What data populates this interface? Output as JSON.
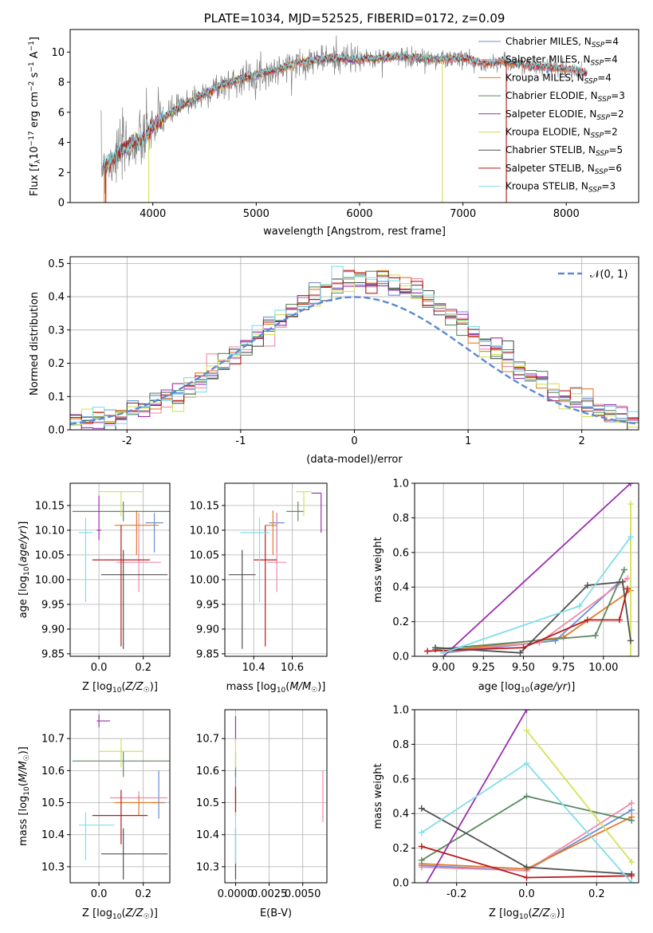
{
  "figure_title": "PLATE=1034, MJD=52525, FIBERID=0172, z=0.09",
  "colors": {
    "chabrier_miles": "#6b8fd6",
    "salpeter_miles": "#f08aa8",
    "kroupa_miles": "#e07b2a",
    "chabrier_elodie": "#5d8a62",
    "salpeter_elodie": "#9b2fae",
    "kroupa_elodie": "#d4e157",
    "chabrier_stelib": "#505050",
    "salpeter_stelib": "#b71c1c",
    "kroupa_stelib": "#80deea",
    "normal_curve": "#5b8ad6"
  },
  "chart_data": [
    {
      "id": "spectrum",
      "type": "line",
      "title": "PLATE=1034, MJD=52525, FIBERID=0172, z=0.09",
      "xlabel": "wavelength [Angstrom, rest frame]",
      "ylabel_parts": [
        "Flux [f",
        "λ",
        "10",
        "−17",
        " erg cm",
        "−2",
        " s",
        "−1",
        " A",
        "−1",
        "]"
      ],
      "xlim": [
        3200,
        8700
      ],
      "ylim": [
        0,
        11.5
      ],
      "xticks": [
        4000,
        5000,
        6000,
        7000,
        8000
      ],
      "yticks": [
        0,
        2,
        4,
        6,
        8,
        10
      ],
      "legend_position": "right",
      "legend": [
        {
          "label": "Chabrier MILES, N",
          "sub": "SSP",
          "tail": "=4",
          "color": "#6b8fd6"
        },
        {
          "label": "Salpeter MILES, N",
          "sub": "SSP",
          "tail": "=4",
          "color": "#f08aa8"
        },
        {
          "label": "Kroupa MILES, N",
          "sub": "SSP",
          "tail": "=4",
          "color": "#e07b2a"
        },
        {
          "label": "Chabrier ELODIE, N",
          "sub": "SSP",
          "tail": "=3",
          "color": "#5d8a62"
        },
        {
          "label": "Salpeter ELODIE, N",
          "sub": "SSP",
          "tail": "=2",
          "color": "#9b2fae"
        },
        {
          "label": "Kroupa ELODIE, N",
          "sub": "SSP",
          "tail": "=2",
          "color": "#d4e157"
        },
        {
          "label": "Chabrier STELIB, N",
          "sub": "SSP",
          "tail": "=5",
          "color": "#505050"
        },
        {
          "label": "Salpeter STELIB, N",
          "sub": "SSP",
          "tail": "=6",
          "color": "#b71c1c"
        },
        {
          "label": "Kroupa STELIB, N",
          "sub": "SSP",
          "tail": "=3",
          "color": "#80deea"
        }
      ],
      "continuum": {
        "x": [
          3500,
          3600,
          3700,
          3800,
          3900,
          4000,
          4100,
          4200,
          4300,
          4400,
          4500,
          4600,
          4800,
          5000,
          5200,
          5400,
          5600,
          5800,
          6000,
          6200,
          6400,
          6600,
          6800,
          7000,
          7200,
          7400,
          7600,
          7800,
          8000,
          8200
        ],
        "y": [
          2.4,
          2.8,
          3.5,
          3.9,
          4.1,
          5.0,
          5.6,
          6.1,
          6.5,
          6.9,
          7.2,
          7.6,
          8.1,
          8.5,
          8.8,
          9.3,
          9.5,
          9.6,
          9.5,
          9.6,
          9.7,
          9.6,
          9.5,
          9.6,
          9.2,
          9.4,
          9.1,
          9.0,
          8.9,
          8.6
        ]
      }
    },
    {
      "id": "residuals",
      "type": "step",
      "xlabel": "(data-model)/error",
      "ylabel": "Normed distribution",
      "xlim": [
        -2.5,
        2.5
      ],
      "ylim": [
        0,
        0.52
      ],
      "xticks": [
        -2,
        -1,
        0,
        1,
        2
      ],
      "yticks": [
        0.0,
        0.1,
        0.2,
        0.3,
        0.4,
        0.5
      ],
      "grid": true,
      "legend_position": "top-right",
      "normal_label": "𝒩(0, 1)"
    },
    {
      "id": "Z_vs_age",
      "type": "errorbar",
      "xlabel": "Z [log10(Z/Z☉)]",
      "ylabel": "age  [log10(age/yr)]",
      "xlim": [
        -0.13,
        0.32
      ],
      "ylim": [
        9.845,
        10.195
      ],
      "xticks": [
        0.0,
        0.2
      ],
      "yticks": [
        9.85,
        9.9,
        9.95,
        10.0,
        10.05,
        10.1,
        10.15
      ],
      "grid": true,
      "points": [
        {
          "model": "chabrier_miles",
          "x": 0.25,
          "y": 10.115,
          "xerr": [
            0.04,
            0.04
          ],
          "yerr": [
            0.06,
            0.02
          ]
        },
        {
          "model": "salpeter_miles",
          "x": 0.18,
          "y": 10.035,
          "xerr": [
            0.1,
            0.1
          ],
          "yerr": [
            0.06,
            0.1
          ]
        },
        {
          "model": "kroupa_miles",
          "x": 0.17,
          "y": 10.11,
          "xerr": [
            0.1,
            0.1
          ],
          "yerr": [
            0.06,
            0.03
          ]
        },
        {
          "model": "chabrier_elodie",
          "x": 0.11,
          "y": 10.138,
          "xerr": [
            0.23,
            0.23
          ],
          "yerr": [
            0.02,
            0.02
          ]
        },
        {
          "model": "salpeter_elodie",
          "x": 0.0,
          "y": 10.1,
          "xerr": [
            0.01,
            0.01
          ],
          "yerr": [
            0.02,
            0.07
          ]
        },
        {
          "model": "kroupa_elodie",
          "x": 0.1,
          "y": 10.178,
          "xerr": [
            0.1,
            0.1
          ],
          "yerr": [
            0.05,
            0.0
          ]
        },
        {
          "model": "chabrier_stelib",
          "x": 0.11,
          "y": 10.01,
          "xerr": [
            0.1,
            0.2
          ],
          "yerr": [
            0.15,
            0.05
          ]
        },
        {
          "model": "salpeter_stelib",
          "x": 0.1,
          "y": 10.04,
          "xerr": [
            0.13,
            0.13
          ],
          "yerr": [
            0.175,
            0.07
          ]
        },
        {
          "model": "kroupa_stelib",
          "x": -0.06,
          "y": 10.095,
          "xerr": [
            0.03,
            0.03
          ],
          "yerr": [
            0.14,
            0.03
          ]
        }
      ]
    },
    {
      "id": "mass_vs_age",
      "type": "errorbar",
      "xlabel": "mass [log10(M/M☉)]",
      "ylabel": "",
      "xlim": [
        10.25,
        10.78
      ],
      "ylim": [
        9.845,
        10.195
      ],
      "xticks": [
        10.4,
        10.6
      ],
      "yticks": [
        9.85,
        9.9,
        9.95,
        10.0,
        10.05,
        10.1,
        10.15
      ],
      "grid": true,
      "points": [
        {
          "model": "chabrier_miles",
          "x": 10.52,
          "y": 10.115,
          "xerr": [
            0.04,
            0.04
          ],
          "yerr": [
            0.06,
            0.02
          ]
        },
        {
          "model": "salpeter_miles",
          "x": 10.52,
          "y": 10.035,
          "xerr": [
            0.05,
            0.05
          ],
          "yerr": [
            0.06,
            0.1
          ]
        },
        {
          "model": "kroupa_miles",
          "x": 10.5,
          "y": 10.11,
          "xerr": [
            0.04,
            0.02
          ],
          "yerr": [
            0.06,
            0.03
          ]
        },
        {
          "model": "chabrier_elodie",
          "x": 10.63,
          "y": 10.138,
          "xerr": [
            0.06,
            0.03
          ],
          "yerr": [
            0.02,
            0.02
          ]
        },
        {
          "model": "salpeter_elodie",
          "x": 10.75,
          "y": 10.175,
          "xerr": [
            0.05,
            0.0
          ],
          "yerr": [
            0.08,
            0.0
          ]
        },
        {
          "model": "kroupa_elodie",
          "x": 10.66,
          "y": 10.178,
          "xerr": [
            0.04,
            0.04
          ],
          "yerr": [
            0.05,
            0.0
          ]
        },
        {
          "model": "chabrier_stelib",
          "x": 10.34,
          "y": 10.01,
          "xerr": [
            0.07,
            0.07
          ],
          "yerr": [
            0.15,
            0.05
          ]
        },
        {
          "model": "salpeter_stelib",
          "x": 10.46,
          "y": 10.04,
          "xerr": [
            0.06,
            0.06
          ],
          "yerr": [
            0.175,
            0.07
          ]
        },
        {
          "model": "kroupa_stelib",
          "x": 10.43,
          "y": 10.095,
          "xerr": [
            0.1,
            0.05
          ],
          "yerr": [
            0.14,
            0.03
          ]
        }
      ]
    },
    {
      "id": "age_vs_weight",
      "type": "line",
      "xlabel": "age  [log10(age/yr)]",
      "ylabel": "mass weight",
      "xlim": [
        8.82,
        10.22
      ],
      "ylim": [
        0,
        1
      ],
      "xticks": [
        9.0,
        9.25,
        9.5,
        9.75,
        10.0
      ],
      "yticks": [
        0.0,
        0.2,
        0.4,
        0.6,
        0.8,
        1.0
      ],
      "grid": true,
      "series": [
        {
          "model": "chabrier_miles",
          "x": [
            9.0,
            9.7,
            10.1
          ],
          "y": [
            0.02,
            0.09,
            0.43
          ]
        },
        {
          "model": "salpeter_miles",
          "x": [
            9.0,
            9.6,
            10.15
          ],
          "y": [
            0.03,
            0.08,
            0.45
          ]
        },
        {
          "model": "kroupa_miles",
          "x": [
            9.0,
            9.75,
            10.17
          ],
          "y": [
            0.03,
            0.11,
            0.38
          ]
        },
        {
          "model": "chabrier_elodie",
          "x": [
            8.95,
            9.95,
            10.13
          ],
          "y": [
            0.04,
            0.12,
            0.5
          ]
        },
        {
          "model": "salpeter_elodie",
          "x": [
            9.0,
            10.17
          ],
          "y": [
            0.0,
            1.0
          ]
        },
        {
          "model": "kroupa_elodie",
          "x": [
            10.17,
            10.17
          ],
          "y": [
            0.0,
            0.88
          ]
        },
        {
          "model": "chabrier_stelib",
          "x": [
            8.95,
            9.48,
            9.9,
            10.12,
            10.17
          ],
          "y": [
            0.05,
            0.02,
            0.41,
            0.43,
            0.09
          ]
        },
        {
          "model": "salpeter_stelib",
          "x": [
            8.9,
            9.5,
            9.9,
            10.1,
            10.15
          ],
          "y": [
            0.03,
            0.05,
            0.21,
            0.21,
            0.39
          ]
        },
        {
          "model": "kroupa_stelib",
          "x": [
            9.0,
            9.85,
            10.17
          ],
          "y": [
            0.02,
            0.29,
            0.69
          ]
        }
      ]
    },
    {
      "id": "Z_vs_mass",
      "type": "errorbar",
      "xlabel": "Z [log10(Z/Z☉)]",
      "ylabel": "mass [log10(M/M☉)]",
      "xlim": [
        -0.13,
        0.32
      ],
      "ylim": [
        10.25,
        10.79
      ],
      "xticks": [
        0.0,
        0.2
      ],
      "yticks": [
        10.3,
        10.4,
        10.5,
        10.6,
        10.7
      ],
      "grid": true,
      "points": [
        {
          "model": "chabrier_miles",
          "x": 0.27,
          "y": 10.5,
          "xerr": [
            0.03,
            0.03
          ],
          "yerr": [
            0.05,
            0.1
          ]
        },
        {
          "model": "salpeter_miles",
          "x": 0.18,
          "y": 10.515,
          "xerr": [
            0.13,
            0.13
          ],
          "yerr": [
            0.03,
            0.02
          ]
        },
        {
          "model": "kroupa_miles",
          "x": 0.18,
          "y": 10.5,
          "xerr": [
            0.11,
            0.11
          ],
          "yerr": [
            0.04,
            0.02
          ]
        },
        {
          "model": "chabrier_elodie",
          "x": 0.11,
          "y": 10.63,
          "xerr": [
            0.23,
            0.23
          ],
          "yerr": [
            0.05,
            0.03
          ]
        },
        {
          "model": "salpeter_elodie",
          "x": 0.0,
          "y": 10.755,
          "xerr": [
            0.01,
            0.05
          ],
          "yerr": [
            0.02,
            0.02
          ]
        },
        {
          "model": "kroupa_elodie",
          "x": 0.1,
          "y": 10.66,
          "xerr": [
            0.1,
            0.1
          ],
          "yerr": [
            0.05,
            0.04
          ]
        },
        {
          "model": "chabrier_stelib",
          "x": 0.11,
          "y": 10.34,
          "xerr": [
            0.1,
            0.2
          ],
          "yerr": [
            0.08,
            0.08
          ]
        },
        {
          "model": "salpeter_stelib",
          "x": 0.1,
          "y": 10.46,
          "xerr": [
            0.13,
            0.12
          ],
          "yerr": [
            0.09,
            0.08
          ]
        },
        {
          "model": "kroupa_stelib",
          "x": -0.06,
          "y": 10.43,
          "xerr": [
            0.03,
            0.13
          ],
          "yerr": [
            0.11,
            0.04
          ]
        }
      ]
    },
    {
      "id": "ebv_vs_mass",
      "type": "errorbar",
      "xlabel": "E(B-V)",
      "ylabel": "",
      "xlim": [
        -0.0008,
        0.0068
      ],
      "ylim": [
        10.25,
        10.79
      ],
      "xticks": [
        0.0,
        0.0025,
        0.005
      ],
      "xtick_labels": [
        "0.0000",
        "0.0025",
        "0.0050"
      ],
      "yticks": [
        10.3,
        10.4,
        10.5,
        10.6,
        10.7
      ],
      "grid": true,
      "points": [
        {
          "model": "chabrier_miles",
          "x": 0.0,
          "y": 10.55,
          "xerr": [
            0,
            0
          ],
          "yerr": [
            0.05,
            0.05
          ]
        },
        {
          "model": "salpeter_miles",
          "x": 0.0065,
          "y": 10.52,
          "xerr": [
            0,
            0
          ],
          "yerr": [
            0.08,
            0.08
          ]
        },
        {
          "model": "kroupa_miles",
          "x": 0.0,
          "y": 10.5,
          "xerr": [
            0,
            0
          ],
          "yerr": [
            0.04,
            0.04
          ]
        },
        {
          "model": "chabrier_elodie",
          "x": 0.0,
          "y": 10.63,
          "xerr": [
            0,
            0
          ],
          "yerr": [
            0.05,
            0.03
          ]
        },
        {
          "model": "salpeter_elodie",
          "x": 0.0,
          "y": 10.72,
          "xerr": [
            0,
            0
          ],
          "yerr": [
            0.03,
            0.05
          ]
        },
        {
          "model": "kroupa_elodie",
          "x": 0.0,
          "y": 10.66,
          "xerr": [
            0,
            0
          ],
          "yerr": [
            0.05,
            0.04
          ]
        },
        {
          "model": "chabrier_stelib",
          "x": 0.0,
          "y": 10.34,
          "xerr": [
            0,
            0
          ],
          "yerr": [
            0.08,
            0.08
          ]
        },
        {
          "model": "salpeter_stelib",
          "x": 0.0,
          "y": 10.5,
          "xerr": [
            0,
            0
          ],
          "yerr": [
            0.03,
            0.05
          ]
        },
        {
          "model": "kroupa_stelib",
          "x": 0.0,
          "y": 10.42,
          "xerr": [
            0,
            0
          ],
          "yerr": [
            0.11,
            0.05
          ]
        }
      ]
    },
    {
      "id": "Z_vs_weight",
      "type": "line",
      "xlabel": "Z [log10(Z/Z☉)]",
      "ylabel": "mass weight",
      "xlim": [
        -0.32,
        0.32
      ],
      "ylim": [
        0,
        1
      ],
      "xticks": [
        -0.2,
        0.0,
        0.2
      ],
      "yticks": [
        0.0,
        0.2,
        0.4,
        0.6,
        0.8,
        1.0
      ],
      "grid": true,
      "series": [
        {
          "model": "chabrier_miles",
          "x": [
            -0.3,
            0.0,
            0.3
          ],
          "y": [
            0.1,
            0.07,
            0.42
          ]
        },
        {
          "model": "salpeter_miles",
          "x": [
            -0.3,
            0.0,
            0.3
          ],
          "y": [
            0.09,
            0.07,
            0.46
          ]
        },
        {
          "model": "kroupa_miles",
          "x": [
            -0.3,
            0.0,
            0.3
          ],
          "y": [
            0.11,
            0.08,
            0.38
          ]
        },
        {
          "model": "chabrier_elodie",
          "x": [
            -0.3,
            0.0,
            0.3
          ],
          "y": [
            0.13,
            0.5,
            0.36
          ]
        },
        {
          "model": "salpeter_elodie",
          "x": [
            -0.3,
            0.0
          ],
          "y": [
            -0.05,
            1.0
          ]
        },
        {
          "model": "kroupa_elodie",
          "x": [
            0.0,
            0.3
          ],
          "y": [
            0.88,
            0.12
          ]
        },
        {
          "model": "chabrier_stelib",
          "x": [
            -0.3,
            0.0,
            0.3
          ],
          "y": [
            0.43,
            0.09,
            0.05
          ]
        },
        {
          "model": "salpeter_stelib",
          "x": [
            -0.3,
            0.0,
            0.3
          ],
          "y": [
            0.21,
            0.03,
            0.04
          ]
        },
        {
          "model": "kroupa_stelib",
          "x": [
            -0.3,
            0.0,
            0.3
          ],
          "y": [
            0.29,
            0.69,
            0.0
          ]
        }
      ]
    }
  ]
}
